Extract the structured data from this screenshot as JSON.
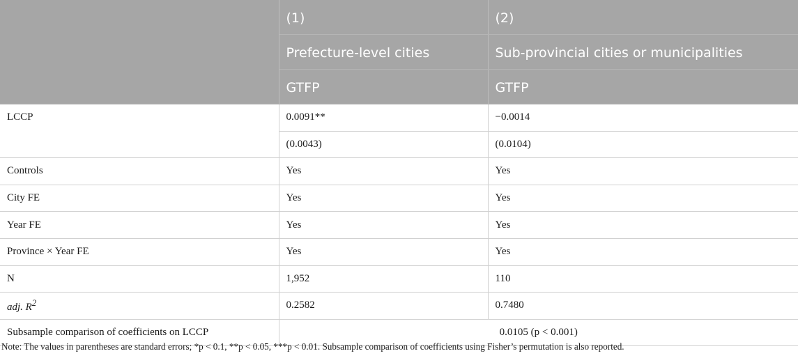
{
  "header": {
    "col1": {
      "number": "(1)",
      "group": "Prefecture-level cities",
      "dv": "GTFP"
    },
    "col2": {
      "number": "(2)",
      "group": "Sub-provincial cities or municipalities",
      "dv": "GTFP"
    }
  },
  "rows": {
    "lccp": {
      "label": "LCCP",
      "coef1": "0.0091**",
      "coef2": "−0.0014",
      "se1": "(0.0043)",
      "se2": "(0.0104)"
    },
    "controls": {
      "label": "Controls",
      "v1": "Yes",
      "v2": "Yes"
    },
    "city_fe": {
      "label": "City FE",
      "v1": "Yes",
      "v2": "Yes"
    },
    "year_fe": {
      "label": "Year FE",
      "v1": "Yes",
      "v2": "Yes"
    },
    "prov_year_fe": {
      "label": "Province × Year FE",
      "v1": "Yes",
      "v2": "Yes"
    },
    "n": {
      "label": "N",
      "v1": "1,952",
      "v2": "110"
    },
    "adj_r2": {
      "label_main": "adj. R",
      "label_sup": "2",
      "v1": "0.2582",
      "v2": "0.7480"
    },
    "subsample": {
      "label": "Subsample comparison of coefficients on LCCP",
      "value": "0.0105 (p < 0.001)"
    }
  },
  "note": "Note: The values in parentheses are standard errors; *p < 0.1, **p < 0.05, ***p < 0.01. Subsample comparison of coefficients using Fisher’s permutation is also reported."
}
